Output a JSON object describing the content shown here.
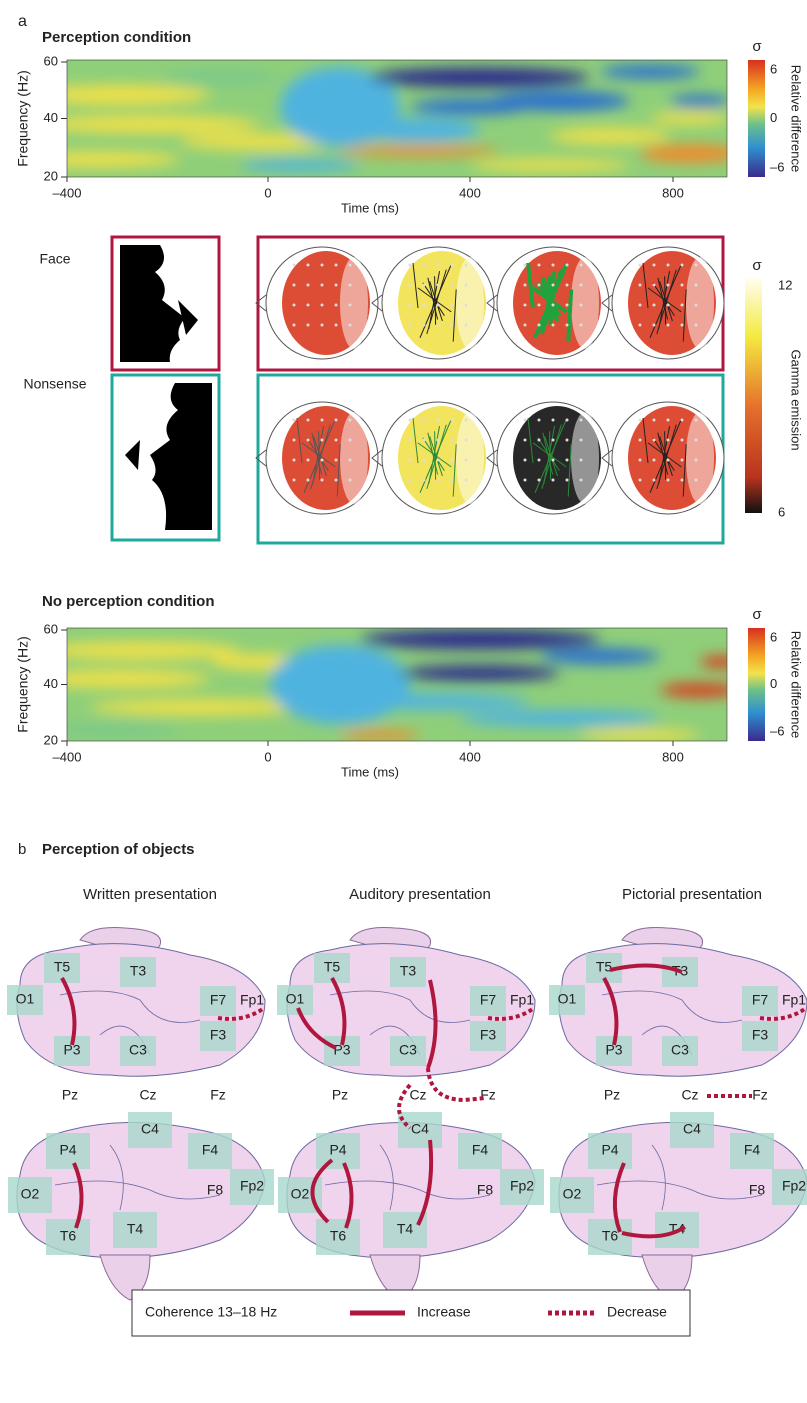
{
  "panel_a": {
    "label": "a",
    "perception": {
      "title": "Perception condition",
      "y_label": "Frequency (Hz)",
      "yticks": [
        "60",
        "40",
        "20"
      ],
      "xticks": [
        "–400",
        "0",
        "400",
        "800"
      ],
      "x_label": "Time (ms)",
      "colorbar": {
        "unit": "σ",
        "ticks": [
          "6",
          "0",
          "–6"
        ],
        "label": "Relative difference"
      }
    },
    "stimuli": {
      "rows": [
        "Face",
        "Nonsense"
      ],
      "colorbar": {
        "unit": "σ",
        "ticks": [
          "12",
          "6"
        ],
        "label": "Gamma emission"
      }
    },
    "no_perception": {
      "title": "No perception condition",
      "y_label": "Frequency (Hz)",
      "yticks": [
        "60",
        "40",
        "20"
      ],
      "xticks": [
        "–400",
        "0",
        "400",
        "800"
      ],
      "x_label": "Time (ms)",
      "colorbar": {
        "unit": "σ",
        "ticks": [
          "6",
          "0",
          "–6"
        ],
        "label": "Relative difference"
      }
    }
  },
  "panel_b": {
    "label": "b",
    "title": "Perception of objects",
    "columns": [
      {
        "title": "Written presentation",
        "top": [
          "T5",
          "T3",
          "O1",
          "F7",
          "Fp1",
          "F3",
          "P3",
          "C3"
        ],
        "middle": [
          "Pz",
          "Cz",
          "Fz"
        ],
        "bottom": [
          "C4",
          "P4",
          "F4",
          "O2",
          "F8",
          "Fp2",
          "T6",
          "T4"
        ]
      },
      {
        "title": "Auditory presentation",
        "top": [
          "T5",
          "T3",
          "O1",
          "F7",
          "Fp1",
          "F3",
          "P3",
          "C3"
        ],
        "middle": [
          "Pz",
          "Cz",
          "Fz"
        ],
        "bottom": [
          "C4",
          "P4",
          "F4",
          "O2",
          "F8",
          "Fp2",
          "T6",
          "T4"
        ]
      },
      {
        "title": "Pictorial presentation",
        "top": [
          "T5",
          "T3",
          "O1",
          "F7",
          "Fp1",
          "F3",
          "P3",
          "C3"
        ],
        "middle": [
          "Pz",
          "Cz",
          "Fz"
        ],
        "bottom": [
          "C4",
          "P4",
          "F4",
          "O2",
          "F8",
          "Fp2",
          "T6",
          "T4"
        ]
      }
    ],
    "legend": {
      "title": "Coherence 13–18 Hz",
      "items": [
        "Increase",
        "Decrease"
      ]
    }
  }
}
